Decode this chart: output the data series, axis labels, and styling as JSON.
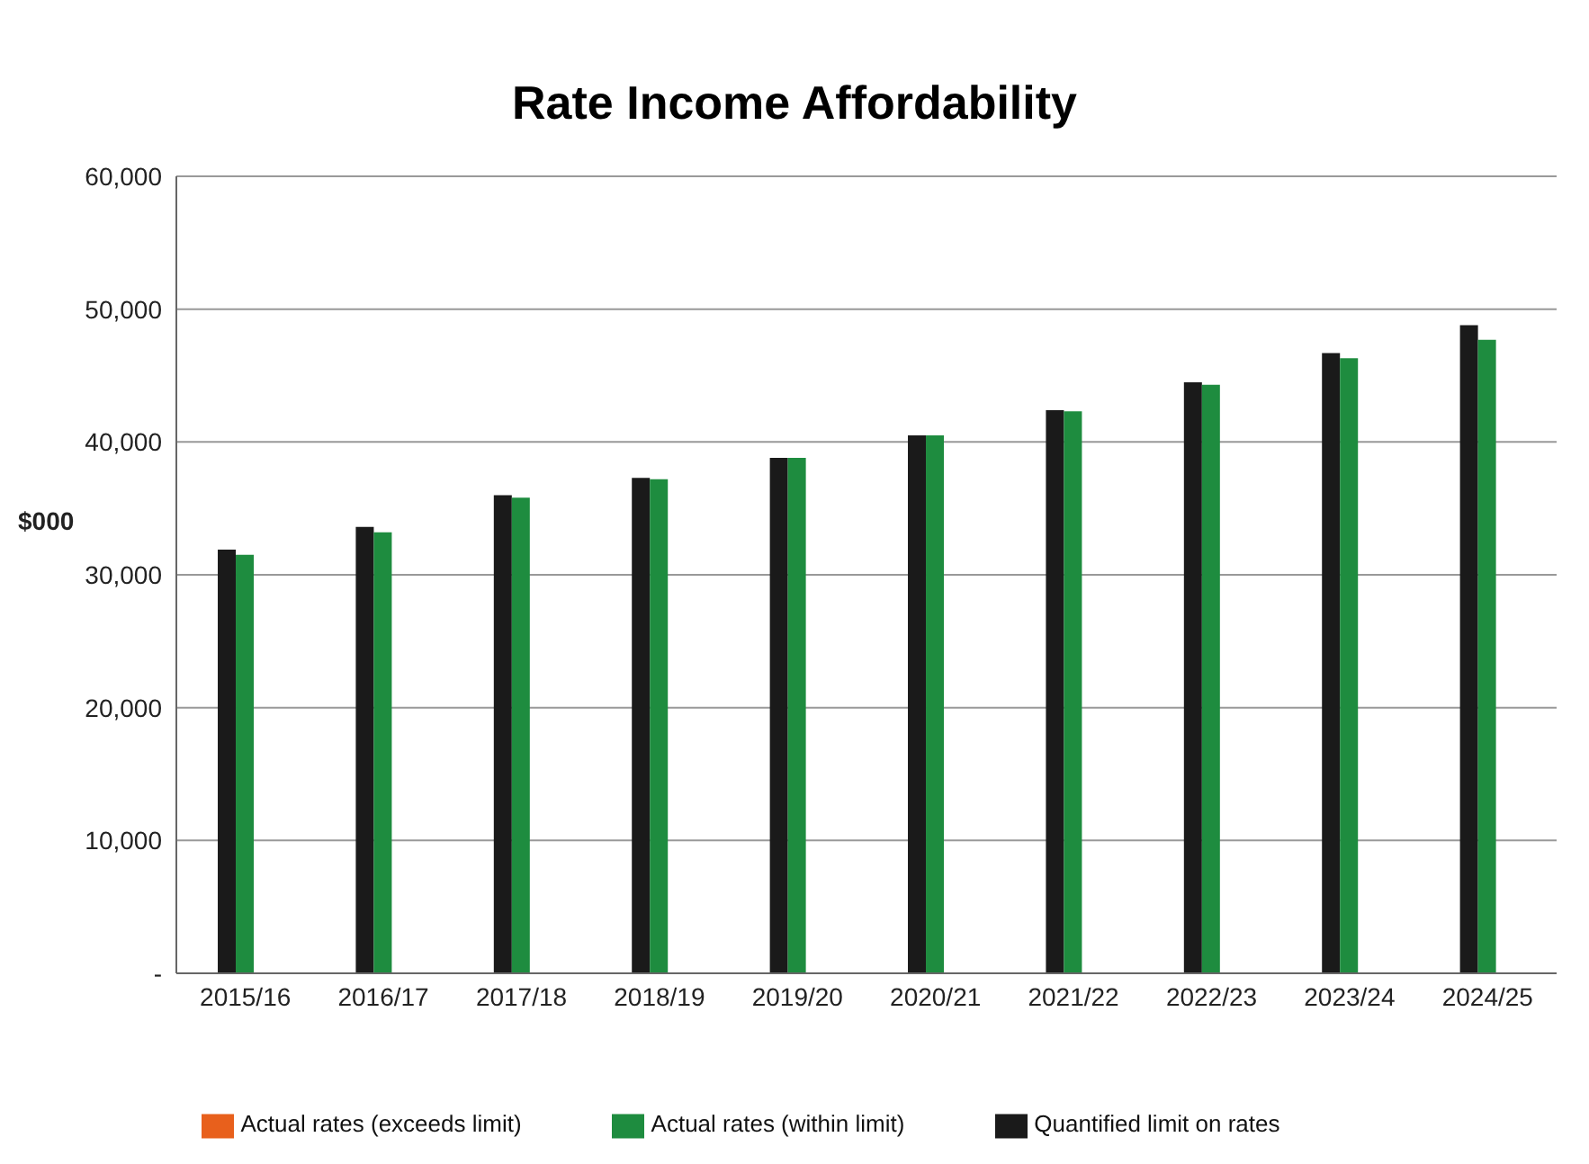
{
  "chart_data": {
    "type": "bar",
    "title": "Rate Income Affordability",
    "ylabel": "$000",
    "categories": [
      "2015/16",
      "2016/17",
      "2017/18",
      "2018/19",
      "2019/20",
      "2020/21",
      "2021/22",
      "2022/23",
      "2023/24",
      "2024/25"
    ],
    "series": [
      {
        "name": "Quantified limit on rates",
        "color": "#1a1a1a",
        "values": [
          31900,
          33600,
          36000,
          37300,
          38800,
          40500,
          42400,
          44500,
          46700,
          48800
        ]
      },
      {
        "name": "Actual rates (within limit)",
        "color": "#1e8c3f",
        "values": [
          31500,
          33200,
          35800,
          37200,
          38800,
          40500,
          42300,
          44300,
          46300,
          47700
        ]
      },
      {
        "name": "Actual rates (exceeds limit)",
        "color": "#e8601c",
        "values": [
          null,
          null,
          null,
          null,
          null,
          null,
          null,
          null,
          null,
          null
        ]
      }
    ],
    "ylim": [
      0,
      60000
    ],
    "yticks": [
      {
        "value": 0,
        "label": "-"
      },
      {
        "value": 10000,
        "label": "10,000"
      },
      {
        "value": 20000,
        "label": "20,000"
      },
      {
        "value": 30000,
        "label": "30,000"
      },
      {
        "value": 40000,
        "label": "40,000"
      },
      {
        "value": 50000,
        "label": "50,000"
      },
      {
        "value": 60000,
        "label": "60,000"
      }
    ],
    "grid": "y",
    "legend": "bottom"
  }
}
